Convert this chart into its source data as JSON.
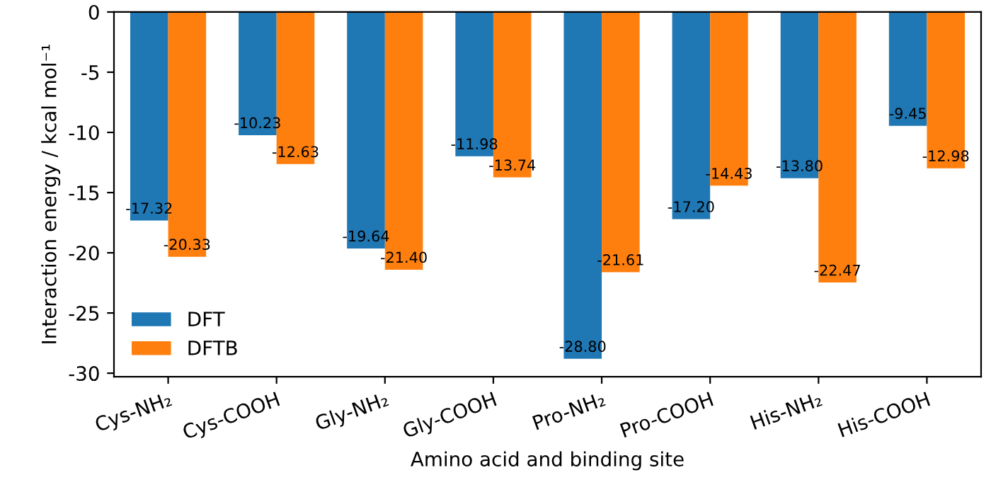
{
  "chart_data": {
    "type": "bar",
    "xlabel": "Amino acid and binding site",
    "ylabel": "Interaction energy / kcal mol⁻¹",
    "categories": [
      "Cys-NH₂",
      "Cys-COOH",
      "Gly-NH₂",
      "Gly-COOH",
      "Pro-NH₂",
      "Pro-COOH",
      "His-NH₂",
      "His-COOH"
    ],
    "series": [
      {
        "name": "DFT",
        "color": "#1f77b4",
        "values": [
          -17.32,
          -10.23,
          -19.64,
          -11.98,
          -28.8,
          -17.2,
          -13.8,
          -9.45
        ],
        "value_labels": [
          "-17.32",
          "-10.23",
          "-19.64",
          "-11.98",
          "-28.80",
          "-17.20",
          "-13.80",
          "-9.45"
        ]
      },
      {
        "name": "DFTB",
        "color": "#ff7f0e",
        "values": [
          -20.33,
          -12.63,
          -21.4,
          -13.74,
          -21.61,
          -14.43,
          -22.47,
          -12.98
        ],
        "value_labels": [
          "-20.33",
          "-12.63",
          "-21.40",
          "-13.74",
          "-21.61",
          "-14.43",
          "-22.47",
          "-12.98"
        ]
      }
    ],
    "ylim": [
      -30.3,
      0
    ],
    "yticks": [
      0,
      -5,
      -10,
      -15,
      -20,
      -25,
      -30
    ],
    "grid": false,
    "legend": "bottom left"
  }
}
